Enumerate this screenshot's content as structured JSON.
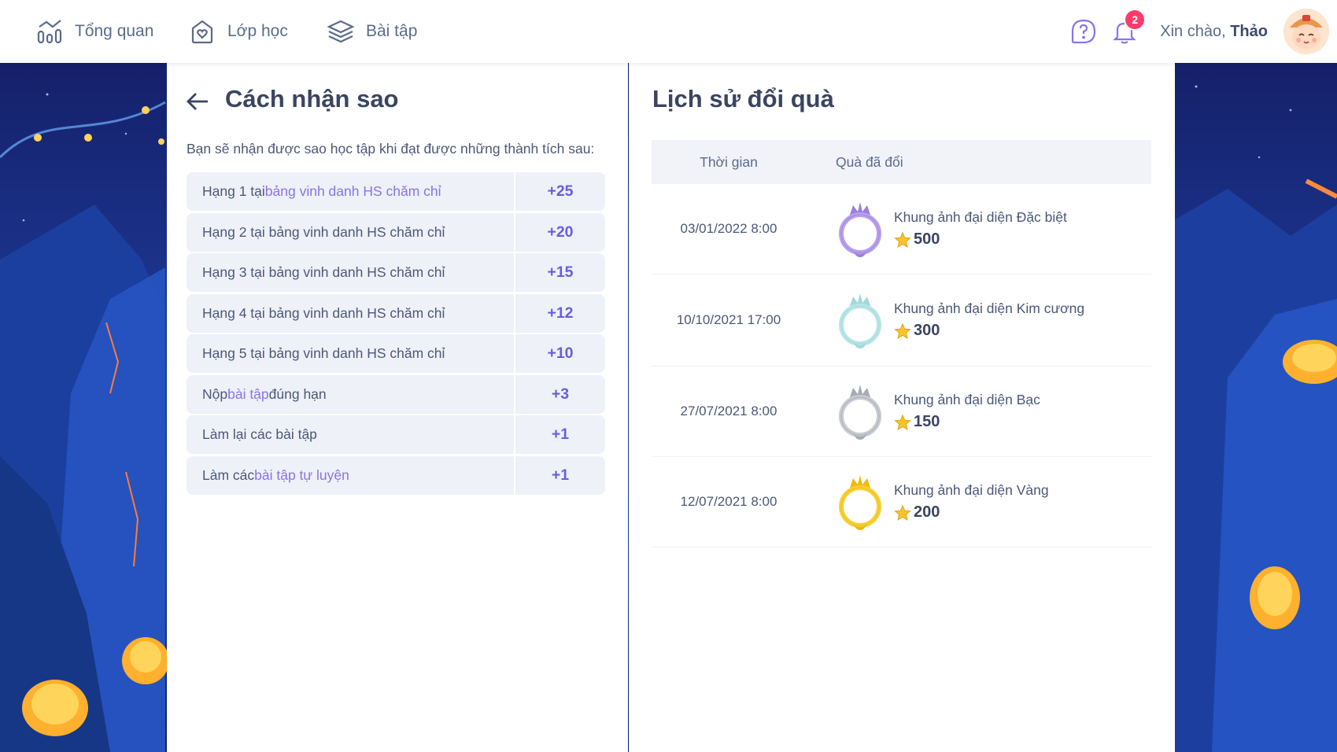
{
  "nav": {
    "overview": "Tổng quan",
    "classes": "Lớp học",
    "exercises": "Bài tập"
  },
  "header": {
    "greeting": "Xin chào,",
    "user_name": "Thảo",
    "notification_count": "2"
  },
  "left_panel": {
    "title": "Cách nhận sao",
    "intro": "Bạn sẽ nhận được sao học tập khi đạt được những thành tích sau:",
    "rules": [
      {
        "prefix": "Hạng 1 tại ",
        "link": "bảng vinh danh HS chăm chỉ",
        "suffix": "",
        "points": "+25"
      },
      {
        "prefix": "Hạng 2 tại bảng vinh danh HS chăm chỉ",
        "link": "",
        "suffix": "",
        "points": "+20"
      },
      {
        "prefix": "Hạng 3 tại bảng vinh danh HS chăm chỉ",
        "link": "",
        "suffix": "",
        "points": "+15"
      },
      {
        "prefix": "Hạng 4 tại bảng vinh danh HS chăm chỉ",
        "link": "",
        "suffix": "",
        "points": "+12"
      },
      {
        "prefix": "Hạng 5 tại bảng vinh danh HS chăm chỉ",
        "link": "",
        "suffix": "",
        "points": "+10"
      },
      {
        "prefix": "Nộp ",
        "link": "bài tập",
        "suffix": " đúng hạn",
        "points": "+3"
      },
      {
        "prefix": "Làm lại các bài tập",
        "link": "",
        "suffix": "",
        "points": "+1"
      },
      {
        "prefix": "Làm các ",
        "link": "bài tập tự luyện",
        "suffix": "",
        "points": "+1"
      }
    ]
  },
  "right_panel": {
    "title": "Lịch sử đổi quà",
    "col_time": "Thời gian",
    "col_gift": "Quà đã đổi",
    "rows": [
      {
        "time": "03/01/2022 8:00",
        "gift": "Khung ảnh đại diện Đặc biệt",
        "price": "500",
        "frame_color": "#b9a3ec",
        "crown_color": "#9b7fe0"
      },
      {
        "time": "10/10/2021 17:00",
        "gift": "Khung ảnh đại diện Kim cương",
        "price": "300",
        "frame_color": "#b8e6e8",
        "crown_color": "#9fd9dc"
      },
      {
        "time": "27/07/2021 8:00",
        "gift": "Khung ảnh đại diện Bạc",
        "price": "150",
        "frame_color": "#c9ccd3",
        "crown_color": "#a6aab3"
      },
      {
        "time": "12/07/2021 8:00",
        "gift": "Khung ảnh đại diện Vàng",
        "price": "200",
        "frame_color": "#f6d23a",
        "crown_color": "#f1b90f"
      }
    ]
  },
  "colors": {
    "accent": "#6b5ce0",
    "link": "#8a74e8",
    "badge": "#ff3b6b"
  }
}
